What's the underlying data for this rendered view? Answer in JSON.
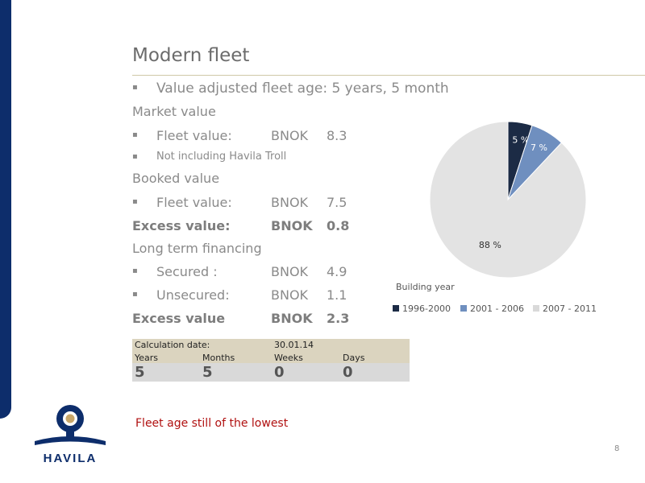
{
  "title": "Modern fleet",
  "bullets": {
    "value_adjusted": "Value adjusted fleet age: 5 years, 5 month",
    "bullet_glyph": "▪"
  },
  "market": {
    "heading": "Market value",
    "fleet_label": "Fleet value:",
    "fleet_currency": "BNOK",
    "fleet_value": "8.3",
    "note": "Not including Havila Troll"
  },
  "booked": {
    "heading": "Booked value",
    "fleet_label": "Fleet value:",
    "fleet_currency": "BNOK",
    "fleet_value": "7.5",
    "excess_label": "Excess value:",
    "excess_currency": "BNOK",
    "excess_value": "0.8"
  },
  "financing": {
    "heading": "Long term financing",
    "secured_label": "Secured :",
    "secured_currency": "BNOK",
    "secured_value": "4.9",
    "unsecured_label": "Unsecured:",
    "unsecured_currency": "BNOK",
    "unsecured_value": "1.1",
    "excess_label": "Excess value",
    "excess_currency": "BNOK",
    "excess_value": "2.3"
  },
  "calculation": {
    "date_label": "Calculation date:",
    "date_value": "30.01.14",
    "headers": [
      "Years",
      "Months",
      "Weeks",
      "Days"
    ],
    "values": [
      "5",
      "5",
      "0",
      "0"
    ]
  },
  "footer_note": "Fleet age still of the lowest",
  "page_number": "8",
  "logo_text": "HAVILA",
  "colors": {
    "navy": "#0d2d6b",
    "steel": "#6f8fbf",
    "light": "#e3e3e3",
    "note_red": "#b01010"
  },
  "chart_data": {
    "type": "pie",
    "title": "Building year",
    "categories": [
      "1996-2000",
      "2001 - 2006",
      "2007 - 2011"
    ],
    "values": [
      5,
      7,
      88
    ],
    "labels": [
      "5 %",
      "7 %",
      "88 %"
    ],
    "colors": [
      "#1c2b45",
      "#6f8fbf",
      "#e3e3e3"
    ],
    "legend_position": "bottom"
  }
}
